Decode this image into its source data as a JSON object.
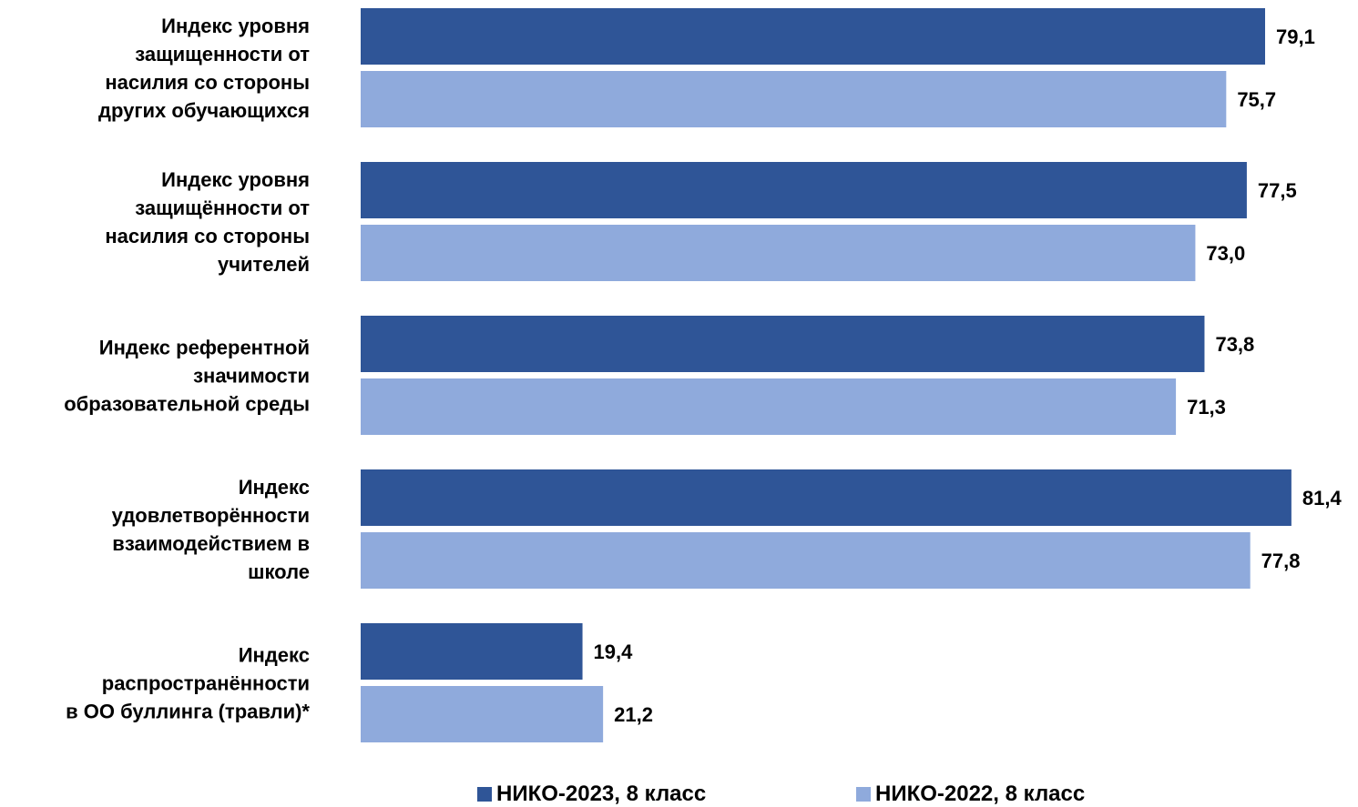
{
  "colors": {
    "series_2023": "#2F5597",
    "series_2022": "#8FAADC"
  },
  "legend": {
    "items": [
      {
        "label": "НИКО-2023, 8 класс"
      },
      {
        "label": "НИКО-2022, 8 класс"
      }
    ],
    "placement": "bottom"
  },
  "chart_data": {
    "type": "bar",
    "orientation": "horizontal",
    "categories": [
      [
        "Индекс уровня",
        "защищенности от",
        "насилия со стороны",
        "других обучающихся"
      ],
      [
        "Индекс уровня",
        "защищённости от",
        "насилия со стороны",
        "учителей"
      ],
      [
        "Индекс референтной",
        "значимости",
        "образовательной среды"
      ],
      [
        "Индекс",
        "удовлетворённости",
        "взаимодействием в",
        "школе"
      ],
      [
        "Индекс",
        "распространённости",
        "в ОО буллинга (травли)*"
      ]
    ],
    "series": [
      {
        "name": "НИКО-2023, 8 класс",
        "values": [
          79.1,
          77.5,
          73.8,
          81.4,
          19.4
        ],
        "labels": [
          "79,1",
          "77,5",
          "73,8",
          "81,4",
          "19,4"
        ]
      },
      {
        "name": "НИКО-2022, 8 класс",
        "values": [
          75.7,
          73.0,
          71.3,
          77.8,
          21.2
        ],
        "labels": [
          "75,7",
          "73,0",
          "71,3",
          "77,8",
          "21,2"
        ]
      }
    ],
    "xlim": [
      0,
      100
    ],
    "grid": false,
    "axes_visible": false,
    "data_labels": true
  }
}
